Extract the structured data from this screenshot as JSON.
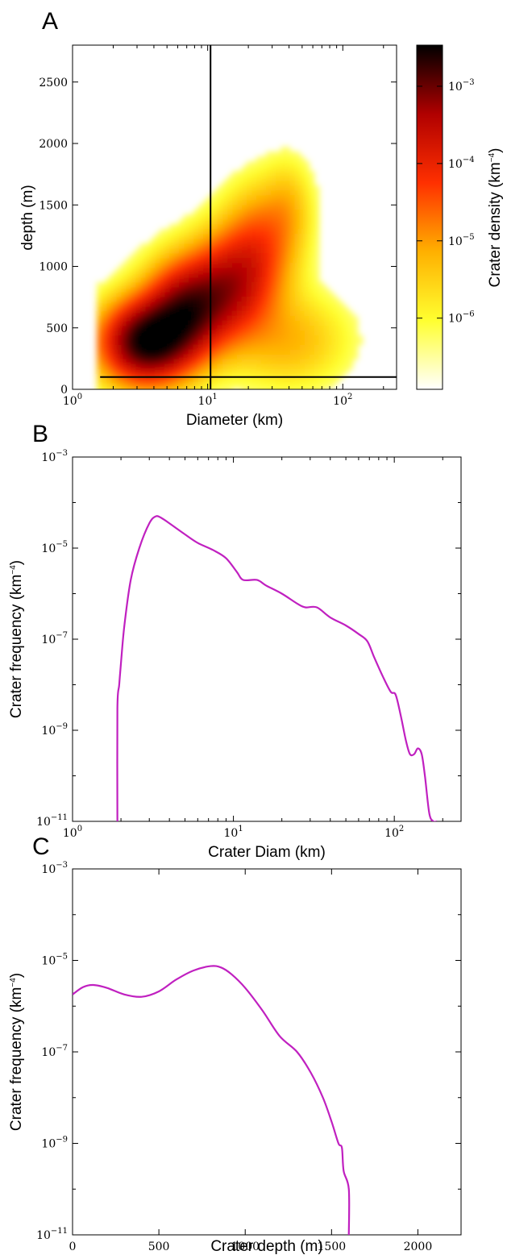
{
  "chart_data": [
    {
      "panel": "A",
      "type": "heatmap",
      "xlabel": "Diameter (km)",
      "ylabel": "depth (m)",
      "xscale": "log",
      "xlim": [
        1,
        250
      ],
      "ylim": [
        0,
        2800
      ],
      "xticks": [
        {
          "base": "10",
          "exp": "0",
          "value": 1
        },
        {
          "base": "10",
          "exp": "1",
          "value": 10
        },
        {
          "base": "10",
          "exp": "2",
          "value": 100
        }
      ],
      "yticks": [
        "0",
        "500",
        "1000",
        "1500",
        "2000",
        "2500"
      ],
      "lines": {
        "vertical_x": 10.5,
        "horizontal_y": 100,
        "horizontal_from_x": 1.6
      },
      "colorbar": {
        "label": "Crater density (km",
        "label_exp": "−4",
        "label_end": ")",
        "scale": "log",
        "ticks": [
          {
            "base": "10",
            "exp": "−3",
            "value": 0.001
          },
          {
            "base": "10",
            "exp": "−4",
            "value": 0.0001
          },
          {
            "base": "10",
            "exp": "−5",
            "value": 1e-05
          },
          {
            "base": "10",
            "exp": "−6",
            "value": 1e-06
          }
        ],
        "colors": [
          "#ffffff",
          "#ffff30",
          "#ffb000",
          "#ff3000",
          "#b00000",
          "#000000"
        ]
      },
      "density_blobs": [
        {
          "d": 3.5,
          "h": 380,
          "sd": 0.22,
          "sh": 220,
          "w": 1.0
        },
        {
          "d": 7.0,
          "h": 650,
          "sd": 0.2,
          "sh": 260,
          "w": 0.75
        },
        {
          "d": 15.0,
          "h": 850,
          "sd": 0.2,
          "sh": 280,
          "w": 0.55
        },
        {
          "d": 25.0,
          "h": 1200,
          "sd": 0.18,
          "sh": 300,
          "w": 0.3
        },
        {
          "d": 40.0,
          "h": 1500,
          "sd": 0.12,
          "sh": 250,
          "w": 0.12
        },
        {
          "d": 40.0,
          "h": 400,
          "sd": 0.28,
          "sh": 250,
          "w": 0.18
        }
      ]
    },
    {
      "panel": "B",
      "type": "line",
      "xlabel": "Crater Diam (km)",
      "ylabel": "Crater frequency (km",
      "ylabel_exp": "−4",
      "ylabel_end": ")",
      "xscale": "log",
      "yscale": "log",
      "xlim": [
        1,
        260
      ],
      "ylim": [
        1e-11,
        0.001
      ],
      "xticks": [
        {
          "base": "10",
          "exp": "0",
          "value": 1
        },
        {
          "base": "10",
          "exp": "1",
          "value": 10
        },
        {
          "base": "10",
          "exp": "2",
          "value": 100
        }
      ],
      "yticks": [
        {
          "base": "10",
          "exp": "−3",
          "value": 0.001
        },
        {
          "base": "10",
          "exp": "−5",
          "value": 1e-05
        },
        {
          "base": "10",
          "exp": "−7",
          "value": 1e-07
        },
        {
          "base": "10",
          "exp": "−9",
          "value": 1e-09
        },
        {
          "base": "10",
          "exp": "−11",
          "value": 1e-11
        }
      ],
      "color": "#c020c0",
      "series": [
        {
          "x": [
            1.9,
            1.9,
            1.95,
            2.0,
            2.1,
            2.3,
            2.6,
            3.0,
            3.3,
            3.6,
            4.0,
            5.0,
            6.0,
            7.5,
            9.0,
            10.5,
            11.5,
            14.0,
            16.0,
            20.0,
            25.0,
            28.0,
            33.0,
            40.0,
            50.0,
            60.0,
            68.0,
            75.0,
            85.0,
            95.0,
            102.0,
            110.0,
            118.0,
            125.0,
            133.0,
            140.0,
            148.0,
            155.0,
            165.0,
            175.0,
            183.0
          ],
          "y": [
            1e-11,
            3e-09,
            1e-08,
            3e-08,
            2e-07,
            2e-06,
            1e-05,
            3.5e-05,
            5e-05,
            4.5e-05,
            3.5e-05,
            2e-05,
            1.3e-05,
            9e-06,
            6e-06,
            3e-06,
            2e-06,
            2e-06,
            1.5e-06,
            1e-06,
            6e-07,
            5e-07,
            5e-07,
            3e-07,
            2e-07,
            1.3e-07,
            9e-08,
            4e-08,
            1.5e-08,
            7e-09,
            6e-09,
            2e-09,
            6e-10,
            3e-10,
            3e-10,
            4e-10,
            3e-10,
            1e-10,
            1.5e-11,
            1e-11,
            1e-11
          ]
        }
      ]
    },
    {
      "panel": "C",
      "type": "line",
      "xlabel": "Crater depth (m)",
      "ylabel": "Crater frequency (km",
      "ylabel_exp": "−4",
      "ylabel_end": ")",
      "yscale": "log",
      "xlim": [
        0,
        2250
      ],
      "ylim": [
        1e-11,
        0.001
      ],
      "xticks": [
        "0",
        "500",
        "1000",
        "1500",
        "2000"
      ],
      "yticks": [
        {
          "base": "10",
          "exp": "−3",
          "value": 0.001
        },
        {
          "base": "10",
          "exp": "−5",
          "value": 1e-05
        },
        {
          "base": "10",
          "exp": "−7",
          "value": 1e-07
        },
        {
          "base": "10",
          "exp": "−9",
          "value": 1e-09
        },
        {
          "base": "10",
          "exp": "−11",
          "value": 1e-11
        }
      ],
      "color": "#c020c0",
      "series": [
        {
          "x": [
            0,
            60,
            120,
            200,
            300,
            400,
            500,
            600,
            700,
            800,
            860,
            920,
            1000,
            1100,
            1200,
            1300,
            1380,
            1450,
            1500,
            1540,
            1560,
            1570,
            1600,
            1600
          ],
          "y": [
            1.8e-06,
            2.6e-06,
            2.9e-06,
            2.5e-06,
            1.8e-06,
            1.6e-06,
            2.1e-06,
            3.8e-06,
            6e-06,
            7.5e-06,
            7e-06,
            5e-06,
            2.5e-06,
            8e-07,
            2.2e-07,
            1e-07,
            3.5e-08,
            1e-08,
            3e-09,
            1e-09,
            8e-10,
            2.5e-10,
            1e-10,
            1e-11
          ]
        }
      ]
    }
  ]
}
